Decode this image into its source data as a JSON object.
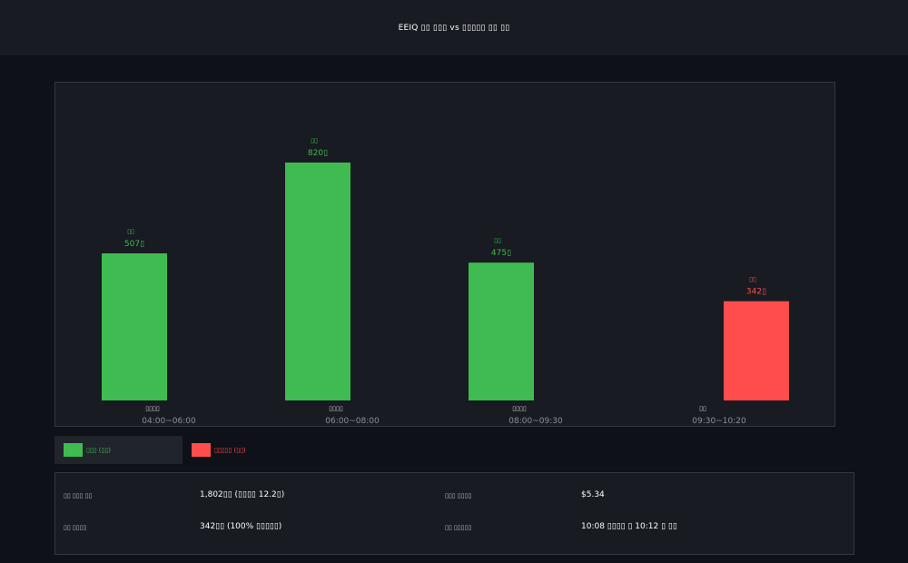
{
  "header": {
    "title": "EEIQ ▯▯ ▯▯▯ vs ▯▯▯▯▯ ▯▯ ▯▯"
  },
  "chart_data": {
    "type": "bar",
    "categories": [
      {
        "name": "▯▯▯▯",
        "time": "04:00~06:00"
      },
      {
        "name": "▯▯▯▯",
        "time": "06:00~08:00"
      },
      {
        "name": "▯▯▯▯",
        "time": "08:00~09:30"
      },
      {
        "name": "▯▯",
        "time": "09:30~10:20"
      }
    ],
    "values": [
      507,
      820,
      475,
      342
    ],
    "value_labels": [
      "507▯",
      "820▯",
      "475▯",
      "342▯"
    ],
    "bar_tags": [
      "▯▯",
      "▯▯",
      "▯▯",
      "▯▯"
    ],
    "series_of_bar": [
      0,
      0,
      0,
      1
    ],
    "colors": [
      "#3fbb51",
      "#3fbb51",
      "#3fbb51",
      "#ff4d4d"
    ],
    "ylim": [
      0,
      820
    ],
    "grid": false
  },
  "legend": {
    "items": [
      {
        "label": "▯▯▯ (▯▯)",
        "color": "#3fbb51"
      },
      {
        "label": "▯▯▯▯▯ (▯▯)",
        "color": "#ff4d4d"
      }
    ]
  },
  "info": {
    "rows": [
      [
        {
          "label": "▯▯ ▯▯▯ ▯▯",
          "value": "1,802▯▯ (▯▯▯▯ 12.2▯)"
        },
        {
          "label": "▯▯▯ ▯▯▯▯",
          "value": "$5.34"
        }
      ],
      [
        {
          "label": "▯▯ ▯▯▯▯",
          "value": "342▯▯ (100% ▯▯▯▯▯)"
        },
        {
          "label": "▯▯ ▯▯▯▯▯",
          "value": "10:08 ▯▯▯▯ ▯ 10:12 ▯ ▯▯"
        }
      ]
    ]
  }
}
